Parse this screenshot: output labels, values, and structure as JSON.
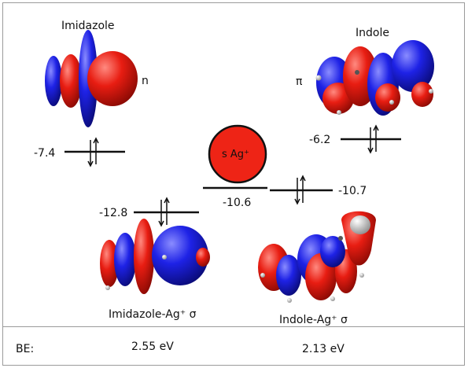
{
  "labels": {
    "imidazole": "Imidazole",
    "indole": "Indole",
    "imidazole_orbital": "n",
    "indole_orbital": "π",
    "imidazole_complex": "Imidazole-Ag⁺ σ",
    "indole_complex": "Indole-Ag⁺ σ",
    "silver_orbital": "s Ag⁺"
  },
  "energies": {
    "imidazole_n": "-7.4",
    "indole_pi": "-6.2",
    "silver_s": "-10.6",
    "indole_sigma": "-10.7",
    "imidazole_sigma": "-12.8"
  },
  "footer": {
    "be_label": "BE:",
    "imidazole_be": "2.55 eV",
    "indole_be": "2.13 eV"
  },
  "colors": {
    "lobe_red": "#e01b10",
    "lobe_blue": "#1a1ee0",
    "frame": "#9a9a9a"
  }
}
